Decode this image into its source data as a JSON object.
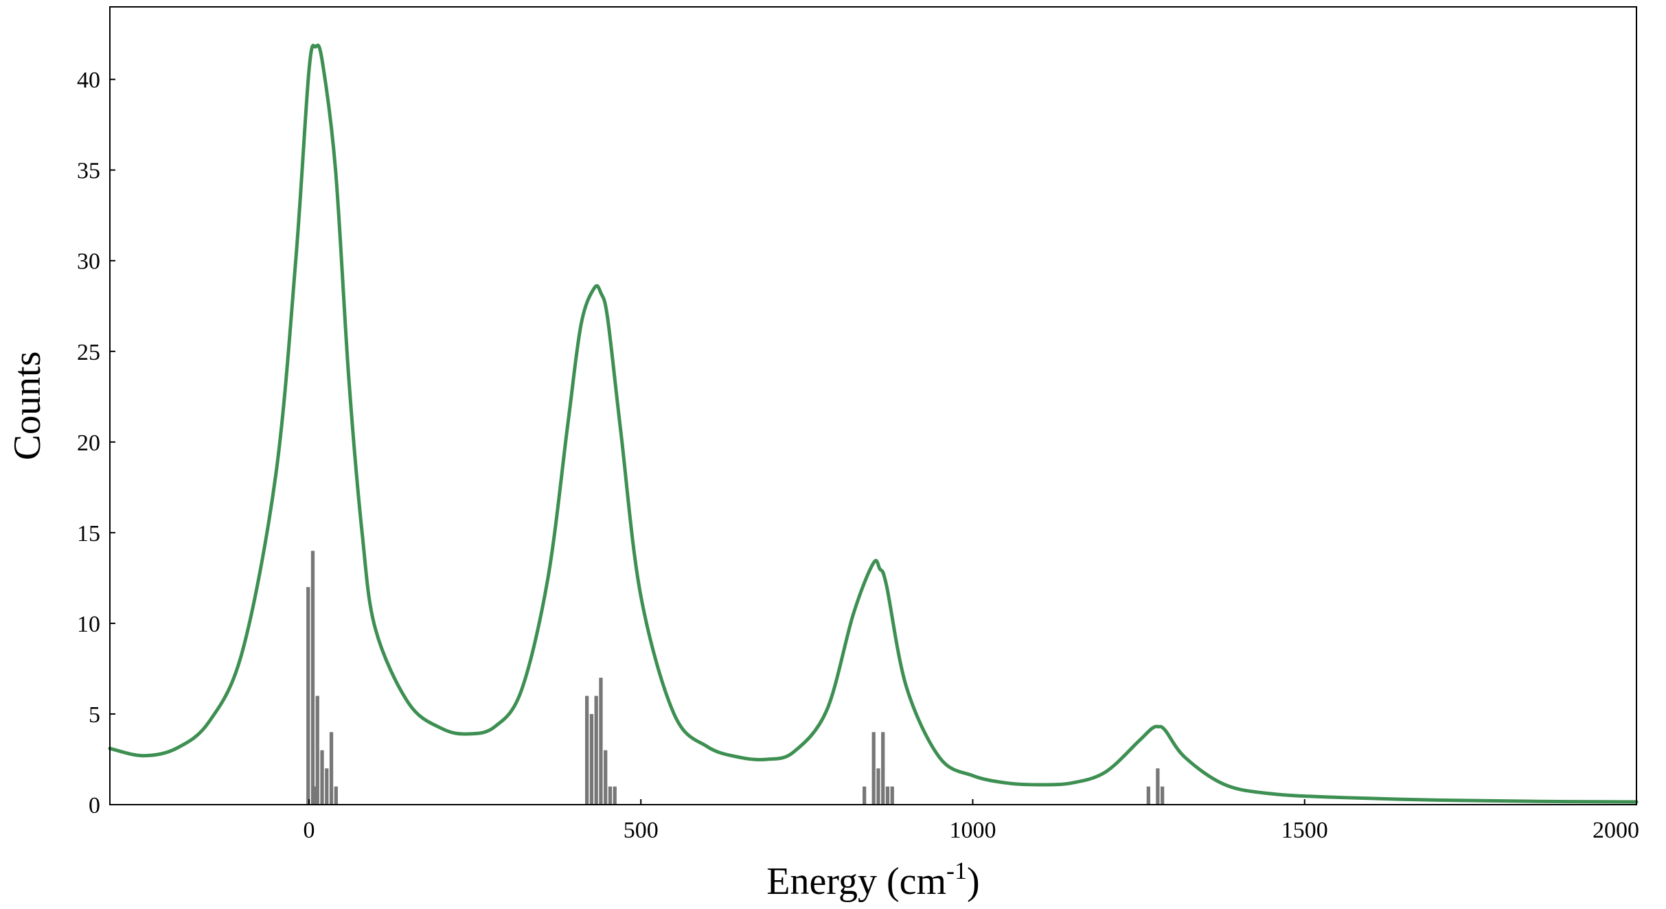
{
  "chart_data": {
    "type": "bar+line",
    "title": "",
    "xlabel": "Energy (cm",
    "xlabel_sup": "-1",
    "xlabel_tail": ")",
    "ylabel": "Counts",
    "xlim": [
      -300,
      2000
    ],
    "ylim": [
      0,
      44
    ],
    "xticks": [
      0,
      500,
      1000,
      1500,
      2000
    ],
    "yticks": [
      0,
      5,
      10,
      15,
      20,
      25,
      30,
      35,
      40
    ],
    "grid": false,
    "legend": "none",
    "colors": {
      "bars": "#777777",
      "curve": "#3d8f52"
    },
    "histogram": {
      "bin_width": 7,
      "bars": [
        {
          "x": -4,
          "y": 12
        },
        {
          "x": 3,
          "y": 14
        },
        {
          "x": 10,
          "y": 6
        },
        {
          "x": 17,
          "y": 3
        },
        {
          "x": 24,
          "y": 2
        },
        {
          "x": 31,
          "y": 4
        },
        {
          "x": 38,
          "y": 1
        },
        {
          "x": 6,
          "y": 1
        },
        {
          "x": 416,
          "y": 6
        },
        {
          "x": 423,
          "y": 5
        },
        {
          "x": 430,
          "y": 6
        },
        {
          "x": 437,
          "y": 7
        },
        {
          "x": 444,
          "y": 3
        },
        {
          "x": 451,
          "y": 1
        },
        {
          "x": 458,
          "y": 1
        },
        {
          "x": 834,
          "y": 1
        },
        {
          "x": 848,
          "y": 4
        },
        {
          "x": 855,
          "y": 2
        },
        {
          "x": 862,
          "y": 4
        },
        {
          "x": 869,
          "y": 1
        },
        {
          "x": 876,
          "y": 1
        },
        {
          "x": 1262,
          "y": 1
        },
        {
          "x": 1276,
          "y": 2
        },
        {
          "x": 1283,
          "y": 1
        }
      ]
    },
    "curve": {
      "x": [
        -300,
        -250,
        -200,
        -150,
        -100,
        -50,
        -20,
        0,
        10,
        20,
        40,
        60,
        80,
        100,
        150,
        200,
        240,
        280,
        320,
        360,
        390,
        410,
        430,
        440,
        450,
        470,
        500,
        550,
        600,
        650,
        690,
        730,
        780,
        820,
        850,
        860,
        870,
        900,
        950,
        1000,
        1050,
        1100,
        1150,
        1200,
        1250,
        1270,
        1280,
        1290,
        1320,
        1380,
        1450,
        1550,
        1700,
        1850,
        2000
      ],
      "y": [
        3.1,
        2.7,
        3.1,
        4.6,
        8.5,
        18.2,
        30.0,
        40.5,
        41.8,
        41.0,
        35.0,
        23.5,
        15.0,
        9.7,
        5.6,
        4.2,
        3.9,
        4.3,
        6.3,
        12.5,
        21.0,
        26.5,
        28.5,
        28.2,
        26.8,
        20.5,
        11.5,
        5.0,
        3.2,
        2.6,
        2.5,
        2.9,
        5.2,
        10.5,
        13.3,
        13.0,
        12.1,
        6.5,
        2.6,
        1.6,
        1.2,
        1.1,
        1.2,
        1.8,
        3.5,
        4.2,
        4.3,
        4.1,
        2.6,
        1.1,
        0.6,
        0.4,
        0.25,
        0.18,
        0.15
      ]
    }
  }
}
